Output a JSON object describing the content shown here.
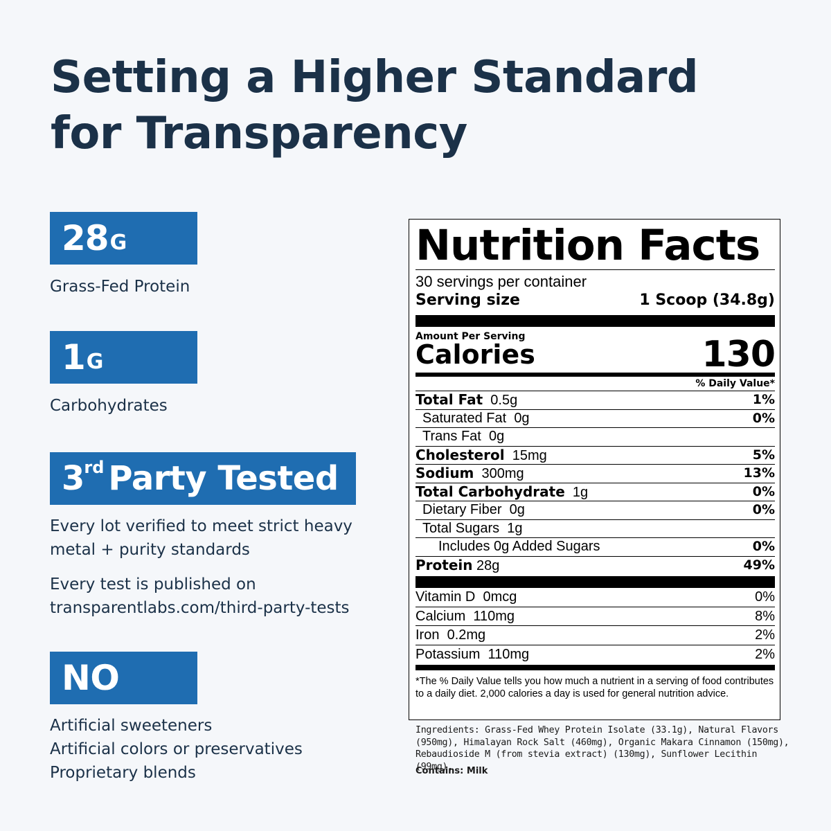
{
  "headline": {
    "line1": "Setting a Higher Standard",
    "line2": "for Transparency"
  },
  "features": [
    {
      "big": "28",
      "small": "G",
      "desc": [
        "Grass-Fed Protein"
      ]
    },
    {
      "big": "1",
      "small": "G",
      "desc": [
        "Carbohydrates"
      ]
    },
    {
      "big": "3",
      "sup": "rd",
      "word": "Party Tested",
      "desc": [
        "Every lot verified to meet strict heavy",
        "metal + purity standards"
      ],
      "desc2": [
        "Every test is published on",
        "transparentlabs.com/third-party-tests"
      ]
    },
    {
      "word": "NO",
      "desc": [
        "Artificial sweeteners",
        "Artificial colors or preservatives",
        "Proprietary blends"
      ]
    }
  ],
  "colors": {
    "badge": "#1f6db1",
    "text": "#1b3148",
    "background": "#f5f7fa"
  },
  "nutrition": {
    "title": "Nutrition Facts",
    "servings": "30 servings per container",
    "serving_label": "Serving size",
    "serving_value": "1 Scoop (34.8g)",
    "amount_label": "Amount Per Serving",
    "calories_label": "Calories",
    "calories_value": "130",
    "dv_header": "% Daily Value*",
    "rows": [
      {
        "label": "Total Fat",
        "amount": "0.5g",
        "dv": "1%"
      },
      {
        "label": "Saturated Fat",
        "amount": "0g",
        "dv": "0%"
      },
      {
        "label": "Trans Fat",
        "amount": "0g",
        "dv": ""
      },
      {
        "label": "Cholesterol",
        "amount": "15mg",
        "dv": "5%"
      },
      {
        "label": "Sodium",
        "amount": "300mg",
        "dv": "13%"
      },
      {
        "label": "Total Carbohydrate",
        "amount": "1g",
        "dv": "0%"
      },
      {
        "label": "Dietary Fiber",
        "amount": "0g",
        "dv": "0%"
      },
      {
        "label": "Total Sugars",
        "amount": "1g",
        "dv": ""
      },
      {
        "label": "Includes 0g Added Sugars",
        "amount": "",
        "dv": "0%"
      },
      {
        "label": "Protein",
        "amount": "28g",
        "dv": "49%"
      }
    ],
    "vitamins": [
      {
        "label": "Vitamin D",
        "amount": "0mcg",
        "dv": "0%"
      },
      {
        "label": "Calcium",
        "amount": "110mg",
        "dv": "8%"
      },
      {
        "label": "Iron",
        "amount": "0.2mg",
        "dv": "2%"
      },
      {
        "label": "Potassium",
        "amount": "110mg",
        "dv": "2%"
      }
    ],
    "footnote": "*The % Daily Value tells you how much a nutrient in a serving of food contributes to a daily diet. 2,000 calories a day is used for general nutrition advice."
  },
  "ingredients": "Ingredients: Grass-Fed Whey Protein Isolate (33.1g), Natural Flavors (950mg), Himalayan Rock Salt (460mg), Organic Makara Cinnamon (150mg), Rebaudioside M (from stevia extract) (130mg), Sunflower Lecithin (99mg).",
  "contains": "Contains: Milk"
}
